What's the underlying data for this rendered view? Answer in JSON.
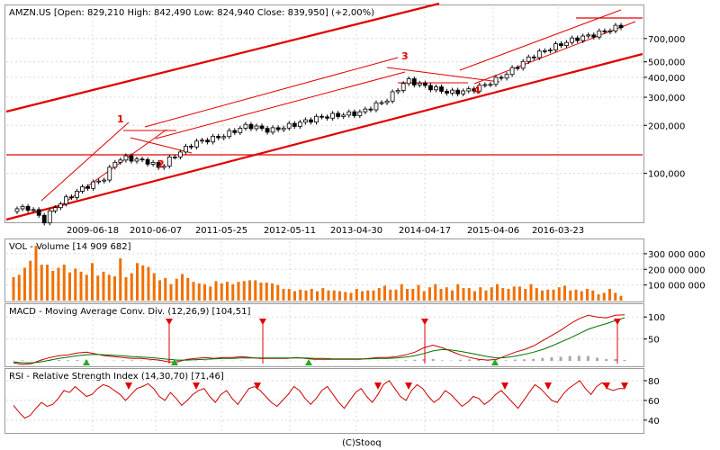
{
  "footer": "(C)Stooq",
  "chart_data": [
    {
      "type": "candlestick",
      "title": "AMZN.US [Open: 829,210  High: 842,490  Low: 824,940  Close: 839,950] (+2,00%)",
      "yscale": "log",
      "ylim": [
        50,
        1100
      ],
      "yticks": [
        {
          "v": 700,
          "label": "700,000"
        },
        {
          "v": 500,
          "label": "500,000"
        },
        {
          "v": 400,
          "label": "400,000"
        },
        {
          "v": 300,
          "label": "300,000"
        },
        {
          "v": 200,
          "label": "200,000"
        },
        {
          "v": 100,
          "label": "100,000"
        }
      ],
      "xticks": [
        "2009-06-18",
        "2010-06-07",
        "2011-05-25",
        "2012-05-11",
        "2013-04-30",
        "2014-04-17",
        "2015-04-06",
        "2016-03-23"
      ],
      "annotations": [
        "1",
        "2",
        "3",
        "4"
      ],
      "grid": true
    },
    {
      "type": "bar",
      "title": "VOL - Volume [14 909 682]",
      "yticks": [
        {
          "v": 300000000,
          "label": "300 000 000"
        },
        {
          "v": 200000000,
          "label": "200 000 000"
        },
        {
          "v": 100000000,
          "label": "100 000 000"
        }
      ],
      "ylim": [
        0,
        380000000
      ],
      "values": [
        150000000,
        165000000,
        210000000,
        255000000,
        350000000,
        230000000,
        230000000,
        190000000,
        210000000,
        230000000,
        180000000,
        205000000,
        185000000,
        165000000,
        240000000,
        160000000,
        185000000,
        165000000,
        155000000,
        270000000,
        150000000,
        175000000,
        240000000,
        225000000,
        215000000,
        175000000,
        130000000,
        145000000,
        105000000,
        140000000,
        170000000,
        145000000,
        120000000,
        110000000,
        105000000,
        90000000,
        125000000,
        110000000,
        120000000,
        105000000,
        120000000,
        125000000,
        130000000,
        130000000,
        115000000,
        115000000,
        110000000,
        100000000,
        75000000,
        75000000,
        60000000,
        70000000,
        65000000,
        75000000,
        60000000,
        80000000,
        65000000,
        65000000,
        60000000,
        55000000,
        50000000,
        75000000,
        60000000,
        65000000,
        65000000,
        80000000,
        95000000,
        70000000,
        70000000,
        105000000,
        75000000,
        75000000,
        100000000,
        60000000,
        85000000,
        105000000,
        75000000,
        85000000,
        65000000,
        105000000,
        80000000,
        80000000,
        60000000,
        85000000,
        65000000,
        85000000,
        105000000,
        80000000,
        75000000,
        90000000,
        90000000,
        75000000,
        105000000,
        80000000,
        65000000,
        70000000,
        70000000,
        85000000,
        95000000,
        65000000,
        70000000,
        60000000,
        75000000,
        65000000,
        40000000,
        50000000,
        75000000,
        50000000,
        30000000
      ]
    },
    {
      "type": "line",
      "title": "MACD - Moving Average Conv. Div. (12,26,9) [104,51]",
      "yticks": [
        {
          "v": 100,
          "label": "100"
        },
        {
          "v": 50,
          "label": "50"
        }
      ],
      "ylim": [
        -10,
        125
      ],
      "series": [
        {
          "color": "#cc0000",
          "values": [
            -4,
            -8,
            -6,
            2,
            8,
            12,
            14,
            18,
            20,
            16,
            12,
            10,
            8,
            6,
            6,
            4,
            2,
            -2,
            -2,
            4,
            6,
            8,
            6,
            8,
            8,
            10,
            8,
            6,
            6,
            6,
            6,
            8,
            6,
            4,
            4,
            4,
            4,
            4,
            4,
            6,
            8,
            8,
            10,
            14,
            20,
            30,
            36,
            30,
            22,
            14,
            8,
            4,
            2,
            4,
            12,
            20,
            26,
            34,
            46,
            58,
            70,
            84,
            96,
            104,
            100,
            98,
            104,
            105
          ]
        },
        {
          "color": "#007000",
          "values": [
            -2,
            -4,
            -4,
            -2,
            2,
            6,
            9,
            12,
            14,
            15,
            14,
            13,
            12,
            10,
            9,
            8,
            6,
            4,
            2,
            2,
            3,
            4,
            5,
            6,
            6,
            7,
            7,
            7,
            7,
            7,
            7,
            7,
            7,
            6,
            6,
            5,
            5,
            5,
            5,
            5,
            6,
            6,
            7,
            9,
            12,
            17,
            23,
            26,
            25,
            22,
            18,
            14,
            10,
            7,
            8,
            11,
            15,
            20,
            26,
            34,
            43,
            52,
            62,
            72,
            79,
            85,
            92,
            98
          ]
        }
      ],
      "signals": [
        "sell",
        "buy",
        "sell",
        "buy",
        "sell",
        "buy",
        "sell",
        "buy"
      ]
    },
    {
      "type": "line",
      "title": "RSI - Relative Strength Index (14,30,70) [71,46]",
      "yticks": [
        {
          "v": 80,
          "label": "80"
        },
        {
          "v": 60,
          "label": "60"
        },
        {
          "v": 40,
          "label": "40"
        }
      ],
      "ylim": [
        28,
        90
      ],
      "values": [
        55,
        48,
        42,
        45,
        52,
        58,
        54,
        56,
        62,
        70,
        68,
        74,
        69,
        64,
        66,
        72,
        76,
        74,
        70,
        66,
        60,
        66,
        72,
        74,
        77,
        72,
        64,
        60,
        68,
        62,
        55,
        60,
        66,
        70,
        72,
        64,
        58,
        66,
        70,
        62,
        56,
        64,
        72,
        74,
        70,
        64,
        58,
        54,
        60,
        66,
        74,
        70,
        62,
        56,
        62,
        70,
        74,
        66,
        58,
        52,
        60,
        68,
        72,
        64,
        58,
        66,
        76,
        80,
        72,
        64,
        60,
        70,
        76,
        72,
        64,
        58,
        62,
        70,
        66,
        60,
        54,
        58,
        64,
        62,
        56,
        60,
        66,
        70,
        64,
        58,
        52,
        60,
        68,
        76,
        72,
        66,
        60,
        58,
        66,
        72,
        76,
        80,
        72,
        66,
        74,
        78,
        72,
        70,
        72,
        72
      ],
      "signals": [
        "sell",
        "sell",
        "sell",
        "sell",
        "sell",
        "sell",
        "sell",
        "sell",
        "sell"
      ]
    }
  ]
}
